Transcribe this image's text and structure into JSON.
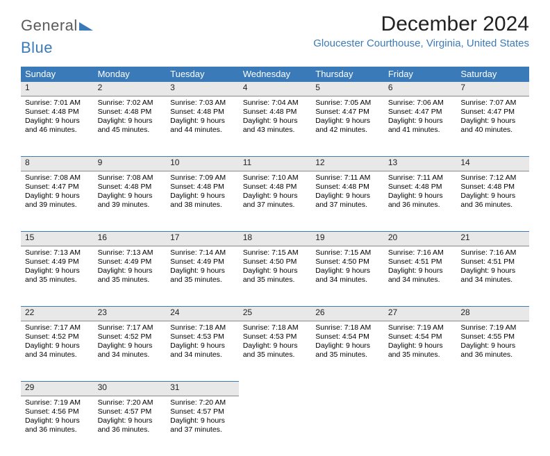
{
  "brand": {
    "general": "General",
    "blue": "Blue"
  },
  "title": "December 2024",
  "location": "Gloucester Courthouse, Virginia, United States",
  "colors": {
    "header_bg": "#3a7ab8",
    "header_fg": "#ffffff",
    "daynum_bg": "#e8e8e8",
    "daynum_border_top": "#3a7ab8",
    "daynum_border_bottom": "#888888",
    "text": "#000000",
    "location_color": "#3a7ab8",
    "background": "#ffffff"
  },
  "weekdays": [
    "Sunday",
    "Monday",
    "Tuesday",
    "Wednesday",
    "Thursday",
    "Friday",
    "Saturday"
  ],
  "weeks": [
    [
      {
        "n": "1",
        "sr": "7:01 AM",
        "ss": "4:48 PM",
        "dl": "9 hours and 46 minutes."
      },
      {
        "n": "2",
        "sr": "7:02 AM",
        "ss": "4:48 PM",
        "dl": "9 hours and 45 minutes."
      },
      {
        "n": "3",
        "sr": "7:03 AM",
        "ss": "4:48 PM",
        "dl": "9 hours and 44 minutes."
      },
      {
        "n": "4",
        "sr": "7:04 AM",
        "ss": "4:48 PM",
        "dl": "9 hours and 43 minutes."
      },
      {
        "n": "5",
        "sr": "7:05 AM",
        "ss": "4:47 PM",
        "dl": "9 hours and 42 minutes."
      },
      {
        "n": "6",
        "sr": "7:06 AM",
        "ss": "4:47 PM",
        "dl": "9 hours and 41 minutes."
      },
      {
        "n": "7",
        "sr": "7:07 AM",
        "ss": "4:47 PM",
        "dl": "9 hours and 40 minutes."
      }
    ],
    [
      {
        "n": "8",
        "sr": "7:08 AM",
        "ss": "4:47 PM",
        "dl": "9 hours and 39 minutes."
      },
      {
        "n": "9",
        "sr": "7:08 AM",
        "ss": "4:48 PM",
        "dl": "9 hours and 39 minutes."
      },
      {
        "n": "10",
        "sr": "7:09 AM",
        "ss": "4:48 PM",
        "dl": "9 hours and 38 minutes."
      },
      {
        "n": "11",
        "sr": "7:10 AM",
        "ss": "4:48 PM",
        "dl": "9 hours and 37 minutes."
      },
      {
        "n": "12",
        "sr": "7:11 AM",
        "ss": "4:48 PM",
        "dl": "9 hours and 37 minutes."
      },
      {
        "n": "13",
        "sr": "7:11 AM",
        "ss": "4:48 PM",
        "dl": "9 hours and 36 minutes."
      },
      {
        "n": "14",
        "sr": "7:12 AM",
        "ss": "4:48 PM",
        "dl": "9 hours and 36 minutes."
      }
    ],
    [
      {
        "n": "15",
        "sr": "7:13 AM",
        "ss": "4:49 PM",
        "dl": "9 hours and 35 minutes."
      },
      {
        "n": "16",
        "sr": "7:13 AM",
        "ss": "4:49 PM",
        "dl": "9 hours and 35 minutes."
      },
      {
        "n": "17",
        "sr": "7:14 AM",
        "ss": "4:49 PM",
        "dl": "9 hours and 35 minutes."
      },
      {
        "n": "18",
        "sr": "7:15 AM",
        "ss": "4:50 PM",
        "dl": "9 hours and 35 minutes."
      },
      {
        "n": "19",
        "sr": "7:15 AM",
        "ss": "4:50 PM",
        "dl": "9 hours and 34 minutes."
      },
      {
        "n": "20",
        "sr": "7:16 AM",
        "ss": "4:51 PM",
        "dl": "9 hours and 34 minutes."
      },
      {
        "n": "21",
        "sr": "7:16 AM",
        "ss": "4:51 PM",
        "dl": "9 hours and 34 minutes."
      }
    ],
    [
      {
        "n": "22",
        "sr": "7:17 AM",
        "ss": "4:52 PM",
        "dl": "9 hours and 34 minutes."
      },
      {
        "n": "23",
        "sr": "7:17 AM",
        "ss": "4:52 PM",
        "dl": "9 hours and 34 minutes."
      },
      {
        "n": "24",
        "sr": "7:18 AM",
        "ss": "4:53 PM",
        "dl": "9 hours and 34 minutes."
      },
      {
        "n": "25",
        "sr": "7:18 AM",
        "ss": "4:53 PM",
        "dl": "9 hours and 35 minutes."
      },
      {
        "n": "26",
        "sr": "7:18 AM",
        "ss": "4:54 PM",
        "dl": "9 hours and 35 minutes."
      },
      {
        "n": "27",
        "sr": "7:19 AM",
        "ss": "4:54 PM",
        "dl": "9 hours and 35 minutes."
      },
      {
        "n": "28",
        "sr": "7:19 AM",
        "ss": "4:55 PM",
        "dl": "9 hours and 36 minutes."
      }
    ],
    [
      {
        "n": "29",
        "sr": "7:19 AM",
        "ss": "4:56 PM",
        "dl": "9 hours and 36 minutes."
      },
      {
        "n": "30",
        "sr": "7:20 AM",
        "ss": "4:57 PM",
        "dl": "9 hours and 36 minutes."
      },
      {
        "n": "31",
        "sr": "7:20 AM",
        "ss": "4:57 PM",
        "dl": "9 hours and 37 minutes."
      },
      null,
      null,
      null,
      null
    ]
  ],
  "labels": {
    "sunrise": "Sunrise: ",
    "sunset": "Sunset: ",
    "daylight": "Daylight: "
  }
}
